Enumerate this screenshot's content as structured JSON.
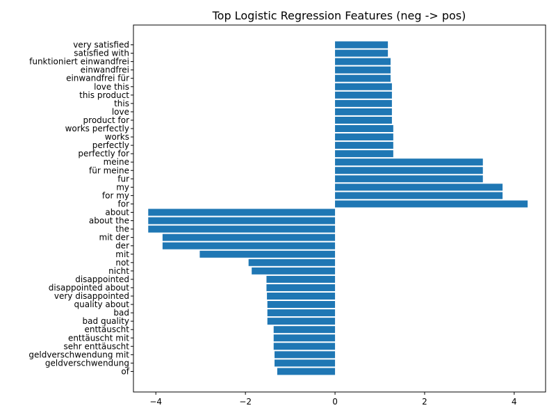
{
  "chart_data": {
    "type": "bar",
    "orientation": "horizontal",
    "title": "Top Logistic Regression Features (neg -> pos)",
    "xlabel": "",
    "ylabel": "",
    "xlim": [
      -4.5,
      4.7
    ],
    "xticks": [
      {
        "value": -4,
        "label": "−4"
      },
      {
        "value": -2,
        "label": "−2"
      },
      {
        "value": 0,
        "label": "0"
      },
      {
        "value": 2,
        "label": "2"
      },
      {
        "value": 4,
        "label": "4"
      }
    ],
    "grid": false,
    "bar_color": "#1f77b4",
    "categories": [
      "very satisfied",
      "satisfied with",
      "funktioniert einwandfrei",
      "einwandfrei",
      "einwandfrei für",
      "love this",
      "this product",
      "this",
      "love",
      "product for",
      "works perfectly",
      "works",
      "perfectly",
      "perfectly for",
      "meine",
      "für meine",
      "fur",
      "my",
      "for my",
      "for",
      "about",
      "about the",
      "the",
      "mit der",
      "der",
      "mit",
      "not",
      "nicht",
      "disappointed",
      "disappointed about",
      "very disappointed",
      "quality about",
      "bad",
      "bad quality",
      "enttäuscht",
      "enttäuscht mit",
      "sehr enttäuscht",
      "geldverschwendung mit",
      "geldverschwendung",
      "of"
    ],
    "values": [
      1.18,
      1.18,
      1.24,
      1.24,
      1.24,
      1.27,
      1.27,
      1.27,
      1.27,
      1.27,
      1.3,
      1.3,
      1.3,
      1.3,
      3.3,
      3.3,
      3.3,
      3.74,
      3.74,
      4.3,
      -4.17,
      -4.17,
      -4.17,
      -3.85,
      -3.85,
      -3.02,
      -1.93,
      -1.86,
      -1.53,
      -1.53,
      -1.52,
      -1.51,
      -1.51,
      -1.51,
      -1.37,
      -1.37,
      -1.37,
      -1.35,
      -1.35,
      -1.29
    ]
  }
}
